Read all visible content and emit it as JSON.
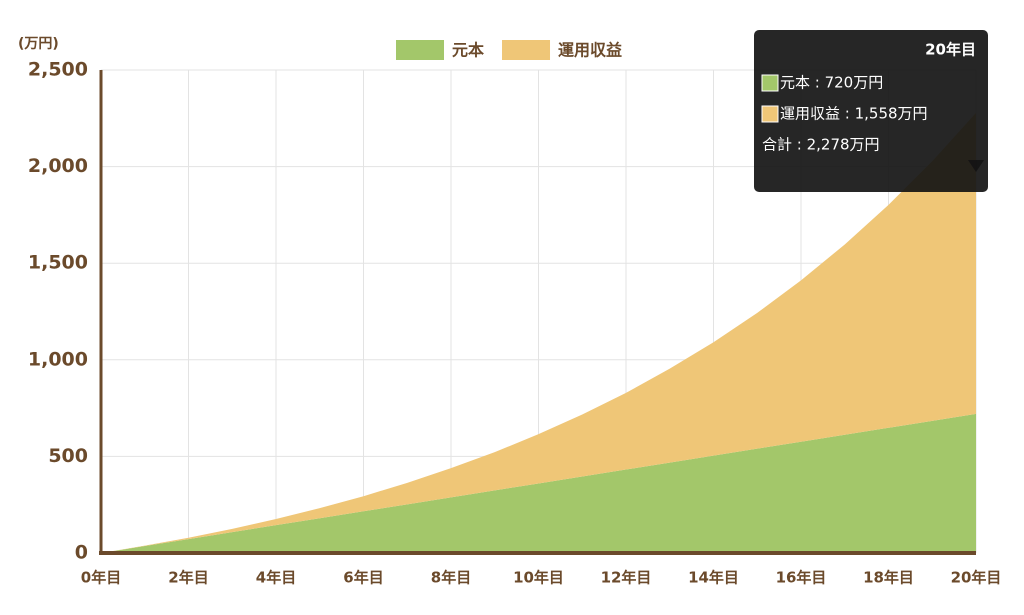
{
  "chart_data": {
    "type": "stacked-area",
    "y_unit": "(万円)",
    "categories": [
      "0年目",
      null,
      "2年目",
      null,
      "4年目",
      null,
      "6年目",
      null,
      "8年目",
      null,
      "10年目",
      null,
      "12年目",
      null,
      "14年目",
      null,
      "16年目",
      null,
      "18年目",
      null,
      "20年目"
    ],
    "series": [
      {
        "name": "元本",
        "color": "#a3c76a",
        "values": [
          0,
          36,
          72,
          108,
          144,
          180,
          216,
          252,
          288,
          324,
          360,
          396,
          432,
          468,
          504,
          540,
          576,
          612,
          648,
          684,
          720
        ]
      },
      {
        "name": "運用収益",
        "color": "#efc677",
        "values": [
          0,
          2,
          7,
          17,
          32,
          52,
          78,
          111,
          151,
          198,
          255,
          321,
          397,
          486,
          587,
          703,
          835,
          985,
          1154,
          1344,
          1558
        ]
      }
    ],
    "ylim": [
      0,
      2500
    ],
    "yticks": [
      0,
      500,
      {
        "value": 1000,
        "label": "1,000"
      },
      {
        "value": 1500,
        "label": "1,500"
      },
      {
        "value": 2000,
        "label": "2,000"
      },
      {
        "value": 2500,
        "label": "2,500"
      }
    ],
    "grid": true,
    "legend": "top",
    "tooltip": {
      "title": "20年目",
      "lines": [
        "元本 : 720万円",
        "運用収益 : 1,558万円",
        "合計 : 2,278万円"
      ]
    }
  }
}
